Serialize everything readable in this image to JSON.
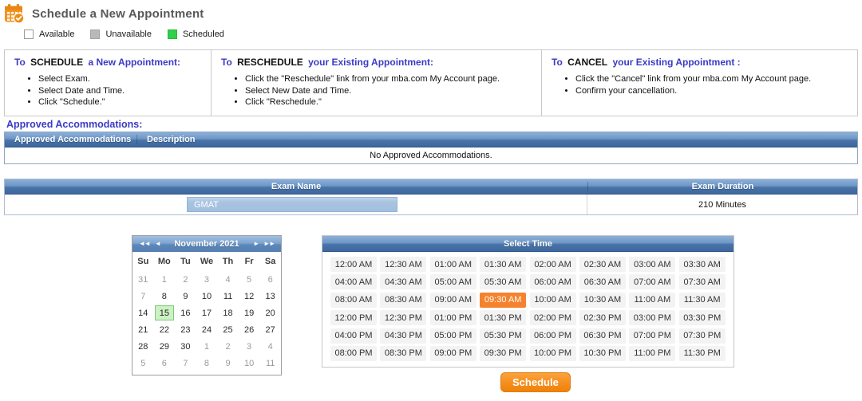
{
  "header": {
    "title": "Schedule a New Appointment"
  },
  "legend": {
    "items": [
      {
        "label": "Available",
        "swatch": "available"
      },
      {
        "label": "Unavailable",
        "swatch": "unavailable"
      },
      {
        "label": "Scheduled",
        "swatch": "scheduled"
      }
    ]
  },
  "instructions": {
    "columns": [
      {
        "prefix": "To",
        "keyword": "SCHEDULE",
        "rest": "a New Appointment:",
        "steps": [
          "Select Exam.",
          "Select Date and Time.",
          "Click \"Schedule.\""
        ]
      },
      {
        "prefix": "To",
        "keyword": "RESCHEDULE",
        "rest": "your Existing Appointment:",
        "steps": [
          "Click the \"Reschedule\" link from your mba.com My Account page.",
          "Select New Date and Time.",
          "Click \"Reschedule.\""
        ]
      },
      {
        "prefix": "To",
        "keyword": "CANCEL",
        "rest": "your Existing Appointment :",
        "steps": [
          "Click the \"Cancel\" link from your mba.com My Account page.",
          "Confirm your cancellation."
        ]
      }
    ]
  },
  "accommodations": {
    "heading": "Approved Accommodations:",
    "columns": [
      "Approved Accommodations",
      "Description"
    ],
    "empty_message": "No Approved Accommodations."
  },
  "exam": {
    "columns": [
      "Exam Name",
      "Exam Duration"
    ],
    "selected_name": "GMAT",
    "duration": "210 Minutes"
  },
  "calendar": {
    "month_label": "November 2021",
    "nav": {
      "prev_year": "◄◄",
      "prev_month": "◄",
      "next_month": "►",
      "next_year": "►►"
    },
    "day_headers": [
      "Su",
      "Mo",
      "Tu",
      "We",
      "Th",
      "Fr",
      "Sa"
    ],
    "selected_day": "15",
    "weeks": [
      [
        {
          "day": "31",
          "state": "muted"
        },
        {
          "day": "1",
          "state": "muted"
        },
        {
          "day": "2",
          "state": "muted"
        },
        {
          "day": "3",
          "state": "muted"
        },
        {
          "day": "4",
          "state": "muted"
        },
        {
          "day": "5",
          "state": "muted"
        },
        {
          "day": "6",
          "state": "muted"
        }
      ],
      [
        {
          "day": "7",
          "state": "muted"
        },
        {
          "day": "8",
          "state": "open"
        },
        {
          "day": "9",
          "state": "open"
        },
        {
          "day": "10",
          "state": "open"
        },
        {
          "day": "11",
          "state": "open"
        },
        {
          "day": "12",
          "state": "open"
        },
        {
          "day": "13",
          "state": "open"
        }
      ],
      [
        {
          "day": "14",
          "state": "open"
        },
        {
          "day": "15",
          "state": "selected"
        },
        {
          "day": "16",
          "state": "open"
        },
        {
          "day": "17",
          "state": "open"
        },
        {
          "day": "18",
          "state": "open"
        },
        {
          "day": "19",
          "state": "open"
        },
        {
          "day": "20",
          "state": "open"
        }
      ],
      [
        {
          "day": "21",
          "state": "open"
        },
        {
          "day": "22",
          "state": "open"
        },
        {
          "day": "23",
          "state": "open"
        },
        {
          "day": "24",
          "state": "open"
        },
        {
          "day": "25",
          "state": "open"
        },
        {
          "day": "26",
          "state": "open"
        },
        {
          "day": "27",
          "state": "open"
        }
      ],
      [
        {
          "day": "28",
          "state": "open"
        },
        {
          "day": "29",
          "state": "open"
        },
        {
          "day": "30",
          "state": "open"
        },
        {
          "day": "1",
          "state": "muted"
        },
        {
          "day": "2",
          "state": "muted"
        },
        {
          "day": "3",
          "state": "muted"
        },
        {
          "day": "4",
          "state": "muted"
        }
      ],
      [
        {
          "day": "5",
          "state": "muted"
        },
        {
          "day": "6",
          "state": "muted"
        },
        {
          "day": "7",
          "state": "muted"
        },
        {
          "day": "8",
          "state": "muted"
        },
        {
          "day": "9",
          "state": "muted"
        },
        {
          "day": "10",
          "state": "muted"
        },
        {
          "day": "11",
          "state": "muted"
        }
      ]
    ]
  },
  "time_grid": {
    "title": "Select Time",
    "selected": "09:30 AM",
    "rows": [
      [
        "12:00 AM",
        "12:30 AM",
        "01:00 AM",
        "01:30 AM",
        "02:00 AM",
        "02:30 AM",
        "03:00 AM",
        "03:30 AM"
      ],
      [
        "04:00 AM",
        "04:30 AM",
        "05:00 AM",
        "05:30 AM",
        "06:00 AM",
        "06:30 AM",
        "07:00 AM",
        "07:30 AM"
      ],
      [
        "08:00 AM",
        "08:30 AM",
        "09:00 AM",
        "09:30 AM",
        "10:00 AM",
        "10:30 AM",
        "11:00 AM",
        "11:30 AM"
      ],
      [
        "12:00 PM",
        "12:30 PM",
        "01:00 PM",
        "01:30 PM",
        "02:00 PM",
        "02:30 PM",
        "03:00 PM",
        "03:30 PM"
      ],
      [
        "04:00 PM",
        "04:30 PM",
        "05:00 PM",
        "05:30 PM",
        "06:00 PM",
        "06:30 PM",
        "07:00 PM",
        "07:30 PM"
      ],
      [
        "08:00 PM",
        "08:30 PM",
        "09:00 PM",
        "09:30 PM",
        "10:00 PM",
        "10:30 PM",
        "11:00 PM",
        "11:30 PM"
      ]
    ]
  },
  "schedule": {
    "button_label": "Schedule"
  },
  "colors": {
    "accent_orange": "#f5822d",
    "button_orange": "#f68e1e",
    "scheduled_green": "#2fd04a",
    "selected_day_green": "#ccf1c2",
    "table_header_blue": "#3d689e",
    "heading_purple": "#3b3bc4",
    "exam_selected_blue": "#a9c4e1"
  }
}
